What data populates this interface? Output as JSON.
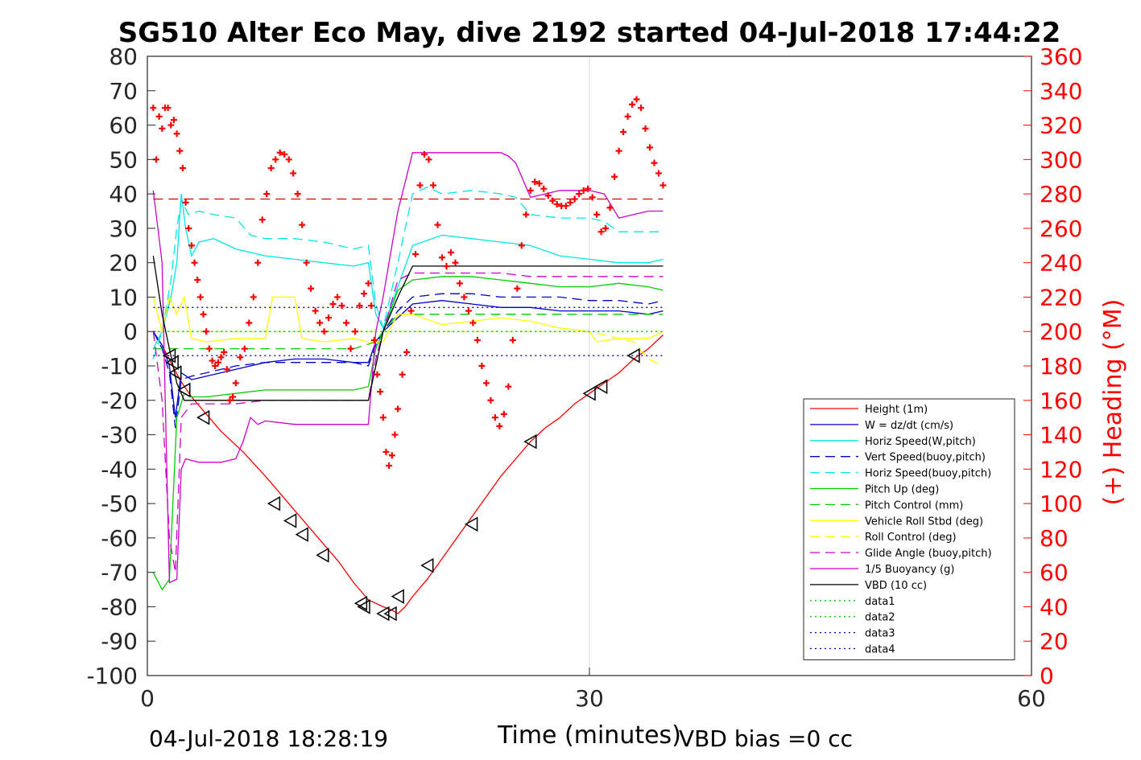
{
  "chart_data": {
    "type": "line",
    "title": "SG510 Alter Eco May, dive 2192 started 04-Jul-2018 17:44:22",
    "xlabel": "Time (minutes)",
    "ylabel": "",
    "y2label": "(+) Heading (°M)",
    "xlim": [
      0,
      60
    ],
    "ylim": [
      -100,
      80
    ],
    "y2lim": [
      0,
      360
    ],
    "xticks": [
      "0",
      "30",
      "60"
    ],
    "yticks": [
      "80",
      "70",
      "60",
      "50",
      "40",
      "30",
      "20",
      "10",
      "0",
      "-10",
      "-20",
      "-30",
      "-40",
      "-50",
      "-60",
      "-70",
      "-80",
      "-90",
      "-100"
    ],
    "y2ticks": [
      "360",
      "340",
      "320",
      "300",
      "280",
      "260",
      "240",
      "220",
      "200",
      "180",
      "160",
      "140",
      "120",
      "100",
      "80",
      "60",
      "40",
      "20",
      "0"
    ],
    "grid_x": [
      30
    ],
    "footer_left": "04-Jul-2018 18:28:19",
    "footer_right": "VBD bias =0 cc",
    "legend_position": "lower-right",
    "colors": {
      "heading": "#ff0000",
      "y2axis": "#ff0000",
      "grid": "#d9d9d9"
    },
    "series": [
      {
        "name": "Height (1m)",
        "color": "#ff0000",
        "style": "solid",
        "x": [
          0.4,
          1.0,
          1.6,
          2.2,
          3.0,
          4.0,
          5.0,
          6.5,
          8.0,
          9.0,
          10.0,
          11.0,
          12.0,
          13.0,
          14.0,
          15.0,
          16.0,
          16.6,
          17.0,
          17.5,
          18.0,
          19.0,
          20.0,
          21.0,
          22.0,
          23.0,
          24.0,
          25.0,
          26.0,
          27.0,
          28.0,
          29.0,
          30.0,
          31.0,
          32.0,
          33.0,
          34.0,
          35.0
        ],
        "y": [
          0,
          -4,
          -9,
          -14,
          -19,
          -24,
          -29,
          -35,
          -42,
          -47,
          -52,
          -57,
          -62,
          -67,
          -73,
          -78,
          -80,
          -81,
          -82,
          -80,
          -77,
          -72,
          -66,
          -60,
          -54,
          -48,
          -42,
          -37,
          -32,
          -28,
          -25,
          -21,
          -18,
          -15,
          -12,
          -8,
          -5,
          -1
        ]
      },
      {
        "name": "W = dz/dt (cm/s)",
        "color": "#0000cc",
        "style": "solid",
        "x": [
          0.4,
          1.0,
          1.5,
          1.9,
          2.3,
          3.0,
          4.0,
          6.0,
          8.0,
          10.0,
          12.0,
          14.0,
          15.0,
          15.5,
          16.0,
          17.0,
          18.0,
          20.0,
          22.0,
          24.0,
          26.0,
          28.0,
          30.0,
          32.0,
          34.0,
          35.0
        ],
        "y": [
          0,
          -4,
          -10,
          -25,
          -12,
          -14,
          -13,
          -11,
          -9,
          -8,
          -8,
          -9,
          -9,
          -3,
          0,
          4,
          8,
          9,
          8,
          7,
          7,
          6,
          6,
          6,
          5,
          6
        ]
      },
      {
        "name": "Horiz Speed(W,pitch)",
        "color": "#00e5e5",
        "style": "solid",
        "x": [
          0.4,
          1.0,
          1.6,
          2.0,
          2.3,
          2.6,
          3.0,
          3.5,
          4.5,
          6.0,
          8.0,
          10.0,
          12.0,
          14.0,
          15.0,
          15.5,
          16.0,
          17.0,
          18.0,
          20.0,
          22.0,
          24.0,
          26.0,
          28.0,
          30.0,
          32.0,
          34.0,
          35.0
        ],
        "y": [
          -5,
          0,
          10,
          20,
          40,
          30,
          22,
          26,
          27,
          24,
          22,
          21,
          20,
          19,
          20,
          5,
          1,
          13,
          25,
          28,
          27,
          26,
          25,
          22,
          21,
          20,
          20,
          21
        ]
      },
      {
        "name": "Vert Speed(buoy,pitch)",
        "color": "#0000cc",
        "style": "dashed",
        "x": [
          0.4,
          1.0,
          1.5,
          1.9,
          2.3,
          3.0,
          4.0,
          6.0,
          8.0,
          10.0,
          12.0,
          14.0,
          15.0,
          15.5,
          16.0,
          17.0,
          18.0,
          20.0,
          22.0,
          24.0,
          26.0,
          28.0,
          30.0,
          32.0,
          34.0,
          35.0
        ],
        "y": [
          0,
          -5,
          -12,
          -28,
          -14,
          -13,
          -12,
          -10,
          -9,
          -9,
          -9,
          -9,
          -10,
          -4,
          0,
          6,
          10,
          11,
          11,
          10,
          10,
          10,
          9,
          9,
          8,
          9
        ]
      },
      {
        "name": "Horiz Speed(buoy,pitch)",
        "color": "#00e5e5",
        "style": "dashed",
        "x": [
          0.4,
          1.0,
          1.6,
          2.0,
          2.3,
          2.8,
          3.5,
          4.5,
          6.0,
          7.0,
          8.0,
          10.0,
          12.0,
          14.0,
          15.0,
          15.5,
          16.0,
          17.0,
          18.0,
          19.0,
          20.0,
          22.0,
          24.0,
          25.0,
          26.0,
          28.0,
          30.0,
          31.0,
          32.0,
          34.0,
          35.0
        ],
        "y": [
          -8,
          0,
          15,
          30,
          38,
          34,
          35,
          34,
          33,
          28,
          27,
          27,
          26,
          24,
          25,
          8,
          1,
          20,
          40,
          42,
          40,
          41,
          40,
          39,
          34,
          33,
          33,
          32,
          29,
          29,
          29
        ]
      },
      {
        "name": "Pitch Up (deg)",
        "color": "#00cc00",
        "style": "solid",
        "x": [
          0.4,
          1.0,
          1.5,
          2.0,
          2.5,
          3.0,
          4.0,
          6.0,
          8.0,
          10.0,
          12.0,
          14.0,
          15.0,
          15.5,
          16.0,
          17.0,
          18.0,
          20.0,
          22.0,
          24.0,
          26.0,
          28.0,
          30.0,
          32.0,
          34.0,
          35.0
        ],
        "y": [
          -70,
          -75,
          -72,
          -25,
          -18,
          -19,
          -19,
          -18,
          -17,
          -17,
          -17,
          -17,
          -16,
          -5,
          0,
          12,
          15,
          16,
          16,
          15,
          14,
          13,
          13,
          14,
          13,
          12
        ]
      },
      {
        "name": "Pitch Control (mm)",
        "color": "#00cc00",
        "style": "dashed",
        "x": [
          0.4,
          1.5,
          2.0,
          3.0,
          6.0,
          10.0,
          14.0,
          15.5,
          16.0,
          17.0,
          20.0,
          25.0,
          30.0,
          35.0
        ],
        "y": [
          -5,
          -5,
          -5,
          -5,
          -5,
          -5,
          -5,
          -3,
          0,
          5,
          5,
          5,
          5,
          5
        ]
      },
      {
        "name": "Vehicle Roll Stbd (deg)",
        "color": "#ffff00",
        "style": "solid",
        "x": [
          0.4,
          1.0,
          1.5,
          2.0,
          2.5,
          3.0,
          4.0,
          6.0,
          8.0,
          8.5,
          10.0,
          10.5,
          12.0,
          14.0,
          15.0,
          16.0,
          17.0,
          18.0,
          20.0,
          22.0,
          24.0,
          26.0,
          28.0,
          30.0,
          30.5,
          32.0,
          34.0,
          35.0
        ],
        "y": [
          10,
          0,
          10,
          5,
          10,
          -2,
          -3,
          -2,
          -2,
          10,
          10,
          -2,
          -3,
          -2,
          -3,
          -3,
          5,
          5,
          2,
          3,
          4,
          3,
          1,
          0,
          -3,
          -2,
          -2,
          0
        ]
      },
      {
        "name": "Roll Control (deg)",
        "color": "#ffff00",
        "style": "dashed",
        "x": [
          0.4,
          1.5,
          2.0,
          3.0,
          6.0,
          10.0,
          14.0,
          16.0,
          17.0,
          20.0,
          25.0,
          30.0,
          33.0,
          34.0,
          35.0
        ],
        "y": [
          0,
          0,
          0,
          0,
          0,
          0,
          0,
          0,
          0,
          0,
          0,
          0,
          -3,
          -8,
          -10
        ]
      },
      {
        "name": "Glide Angle (buoy,pitch)",
        "color": "#cc00cc",
        "style": "dashed",
        "x": [
          0.4,
          1.0,
          1.5,
          1.9,
          2.3,
          3.0,
          4.0,
          6.0,
          8.0,
          10.0,
          12.0,
          14.0,
          15.0,
          15.5,
          16.0,
          17.0,
          18.0,
          20.0,
          22.0,
          24.0,
          26.0,
          28.0,
          30.0,
          32.0,
          34.0,
          35.0
        ],
        "y": [
          0,
          -20,
          -60,
          -70,
          -25,
          -21,
          -21,
          -21,
          -20,
          -20,
          -20,
          -20,
          -20,
          -8,
          0,
          15,
          17,
          17,
          17,
          17,
          16,
          16,
          16,
          16,
          16,
          16
        ]
      },
      {
        "name": "1/5 Buoyancy (g)",
        "color": "#cc00cc",
        "style": "solid",
        "x": [
          0.4,
          1.0,
          1.5,
          2.0,
          2.3,
          2.6,
          3.5,
          5.0,
          6.0,
          6.5,
          7.0,
          7.5,
          8.0,
          10.0,
          12.0,
          14.0,
          15.0,
          15.5,
          16.0,
          17.0,
          18.0,
          20.0,
          22.0,
          24.0,
          24.5,
          25.0,
          26.0,
          27.0,
          28.0,
          30.0,
          31.0,
          32.0,
          33.0,
          34.0,
          35.0
        ],
        "y": [
          41,
          20,
          -73,
          -72,
          -40,
          -37,
          -38,
          -38,
          -37,
          -32,
          -25,
          -27,
          -26,
          -27,
          -27,
          -27,
          -27,
          0,
          10,
          35,
          52,
          52,
          52,
          52,
          51,
          49,
          39,
          40,
          41,
          41,
          40,
          33,
          34,
          35,
          35
        ]
      },
      {
        "name": "VBD (10 cc)",
        "color": "#000000",
        "style": "solid",
        "x": [
          0.4,
          1.0,
          1.5,
          2.0,
          2.5,
          3.0,
          6.0,
          10.0,
          14.0,
          15.0,
          15.5,
          16.0,
          17.0,
          18.0,
          20.0,
          25.0,
          30.0,
          35.0
        ],
        "y": [
          22,
          5,
          -5,
          -15,
          -20,
          -20,
          -20,
          -20,
          -20,
          -20,
          -10,
          0,
          10,
          19,
          19,
          19,
          19,
          19
        ]
      },
      {
        "name": "data1",
        "color": "#00cc00",
        "style": "dotted",
        "x": [
          0.4,
          35.0
        ],
        "y": [
          0,
          0
        ]
      },
      {
        "name": "data2",
        "color": "#00cc00",
        "style": "dotted",
        "x": [
          0.4,
          35.0
        ],
        "y": [
          0,
          0
        ]
      },
      {
        "name": "data3",
        "color": "#0000cc",
        "style": "dotted",
        "x": [
          0.4,
          35.0
        ],
        "y": [
          -7,
          -7
        ]
      },
      {
        "name": "data4",
        "color": "#0000cc",
        "style": "dotted",
        "x": [
          0.4,
          35.0
        ],
        "y": [
          7,
          7
        ]
      }
    ],
    "extra_lines": [
      {
        "color": "#cc0000",
        "style": "dashed",
        "x": [
          0.4,
          35.0
        ],
        "y": [
          38.5,
          38.5
        ]
      }
    ],
    "markers": {
      "shape": "triangle-left",
      "color": "#000000",
      "x": [
        1.5,
        1.7,
        1.9,
        2.5,
        3.8,
        8.6,
        9.7,
        10.5,
        11.9,
        14.5,
        14.7,
        16.0,
        16.5,
        17.0,
        19.0,
        22.0,
        26.0,
        30.0,
        30.8,
        33.0
      ],
      "y": [
        -7,
        -9,
        -12,
        -17,
        -25,
        -50,
        -55,
        -59,
        -65,
        -79,
        -80,
        -82,
        -82,
        -77,
        -68,
        -56,
        -32,
        -18,
        -16,
        -7
      ]
    },
    "heading_points": {
      "axis": "right",
      "marker": "+",
      "color": "#ff0000",
      "x": [
        0.4,
        0.6,
        0.8,
        1.0,
        1.2,
        1.4,
        1.6,
        1.8,
        2.0,
        2.2,
        2.4,
        2.6,
        2.8,
        3.0,
        3.2,
        3.4,
        3.6,
        3.8,
        4.0,
        4.2,
        4.4,
        4.6,
        4.8,
        5.0,
        5.2,
        5.4,
        5.6,
        5.8,
        6.0,
        6.3,
        6.6,
        6.9,
        7.2,
        7.5,
        7.8,
        8.1,
        8.4,
        8.7,
        9.0,
        9.3,
        9.6,
        9.9,
        10.2,
        10.5,
        10.8,
        11.1,
        11.4,
        11.7,
        12.0,
        12.3,
        12.6,
        12.9,
        13.2,
        13.5,
        13.8,
        14.1,
        14.4,
        14.7,
        15.0,
        15.2,
        15.4,
        15.6,
        15.8,
        16.0,
        16.2,
        16.4,
        16.6,
        16.8,
        17.0,
        17.3,
        17.6,
        17.9,
        18.2,
        18.5,
        18.8,
        19.1,
        19.4,
        19.7,
        20.0,
        20.3,
        20.6,
        20.9,
        21.2,
        21.5,
        21.8,
        22.1,
        22.4,
        22.7,
        23.0,
        23.3,
        23.6,
        23.9,
        24.2,
        24.5,
        24.8,
        25.1,
        25.4,
        25.7,
        26.0,
        26.3,
        26.6,
        26.9,
        27.2,
        27.5,
        27.8,
        28.1,
        28.4,
        28.7,
        29.0,
        29.3,
        29.6,
        29.9,
        30.2,
        30.5,
        30.8,
        31.1,
        31.4,
        31.7,
        32.0,
        32.3,
        32.6,
        32.9,
        33.2,
        33.5,
        33.8,
        34.1,
        34.4,
        34.7,
        35.0
      ],
      "y": [
        330,
        300,
        325,
        318,
        330,
        330,
        320,
        323,
        315,
        305,
        295,
        275,
        260,
        250,
        240,
        230,
        220,
        210,
        200,
        190,
        183,
        180,
        182,
        185,
        188,
        178,
        160,
        162,
        170,
        185,
        190,
        205,
        220,
        240,
        265,
        280,
        295,
        300,
        304,
        303,
        300,
        292,
        280,
        262,
        240,
        225,
        212,
        205,
        200,
        208,
        216,
        220,
        215,
        205,
        190,
        200,
        215,
        222,
        228,
        215,
        195,
        175,
        165,
        150,
        130,
        122,
        128,
        140,
        155,
        175,
        188,
        212,
        245,
        285,
        303,
        300,
        285,
        262,
        243,
        238,
        246,
        240,
        228,
        220,
        212,
        205,
        195,
        180,
        170,
        160,
        150,
        145,
        152,
        168,
        195,
        225,
        250,
        268,
        282,
        287,
        286,
        283,
        279,
        276,
        274,
        273,
        273,
        275,
        277,
        280,
        282,
        283,
        278,
        268,
        258,
        260,
        272,
        290,
        305,
        316,
        325,
        332,
        335,
        330,
        318,
        307,
        298,
        292,
        285
      ]
    }
  }
}
